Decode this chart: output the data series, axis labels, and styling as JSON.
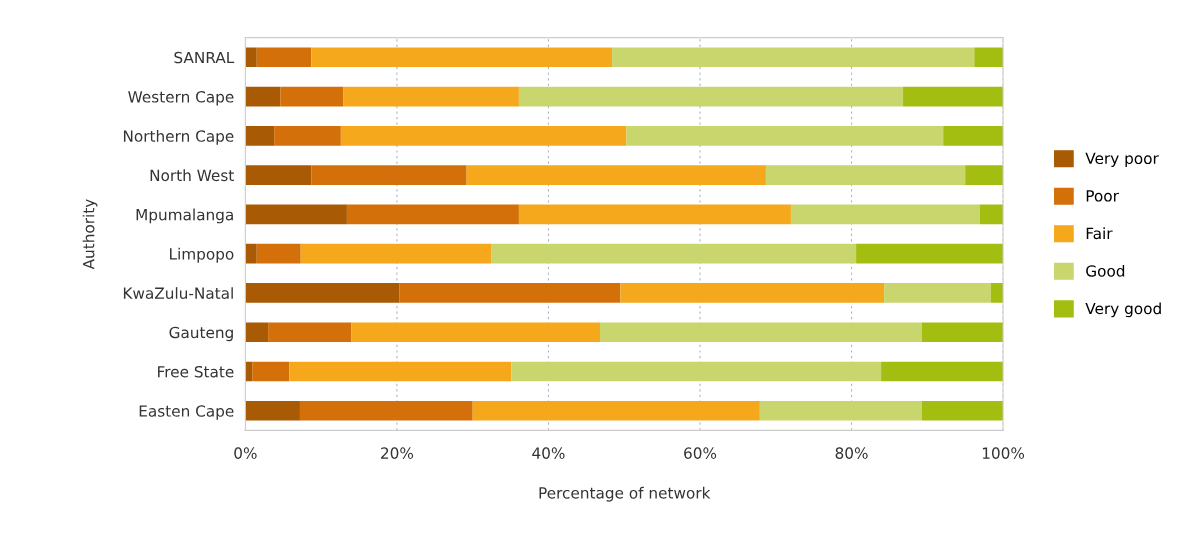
{
  "chart_data": {
    "type": "bar",
    "orientation": "horizontal",
    "stacked": true,
    "xlabel": "Percentage of network",
    "ylabel": "Authority",
    "categories": [
      "SANRAL",
      "Western Cape",
      "Northern Cape",
      "North West",
      "Mpumalanga",
      "Limpopo",
      "KwaZulu-Natal",
      "Gauteng",
      "Free State",
      "Easten Cape"
    ],
    "series": [
      {
        "name": "Very poor",
        "color": "#a85a05",
        "values": [
          1.5,
          4.6,
          3.8,
          8.7,
          13.4,
          1.5,
          20.3,
          3.0,
          0.9,
          7.2
        ]
      },
      {
        "name": "Poor",
        "color": "#d4700a",
        "values": [
          7.2,
          8.3,
          8.8,
          20.5,
          22.7,
          5.8,
          29.2,
          11.0,
          4.9,
          22.8
        ]
      },
      {
        "name": "Fair",
        "color": "#f5a81c",
        "values": [
          39.7,
          23.2,
          37.7,
          39.5,
          35.9,
          25.2,
          34.8,
          32.8,
          29.3,
          37.9
        ]
      },
      {
        "name": "Good",
        "color": "#c9d66e",
        "values": [
          47.8,
          50.7,
          41.8,
          26.3,
          24.9,
          48.1,
          14.1,
          42.5,
          48.8,
          21.4
        ]
      },
      {
        "name": "Very good",
        "color": "#a3bd10",
        "values": [
          3.8,
          13.2,
          7.9,
          5.0,
          3.1,
          19.4,
          1.6,
          10.7,
          16.1,
          10.7
        ]
      }
    ],
    "xlim": [
      0,
      100
    ],
    "xticks": [
      {
        "value": 0,
        "label": "0%"
      },
      {
        "value": 20,
        "label": "20%"
      },
      {
        "value": 40,
        "label": "40%"
      },
      {
        "value": 60,
        "label": "60%"
      },
      {
        "value": 80,
        "label": "80%"
      },
      {
        "value": 100,
        "label": "100%"
      }
    ],
    "grid": "x",
    "legend": "right"
  }
}
